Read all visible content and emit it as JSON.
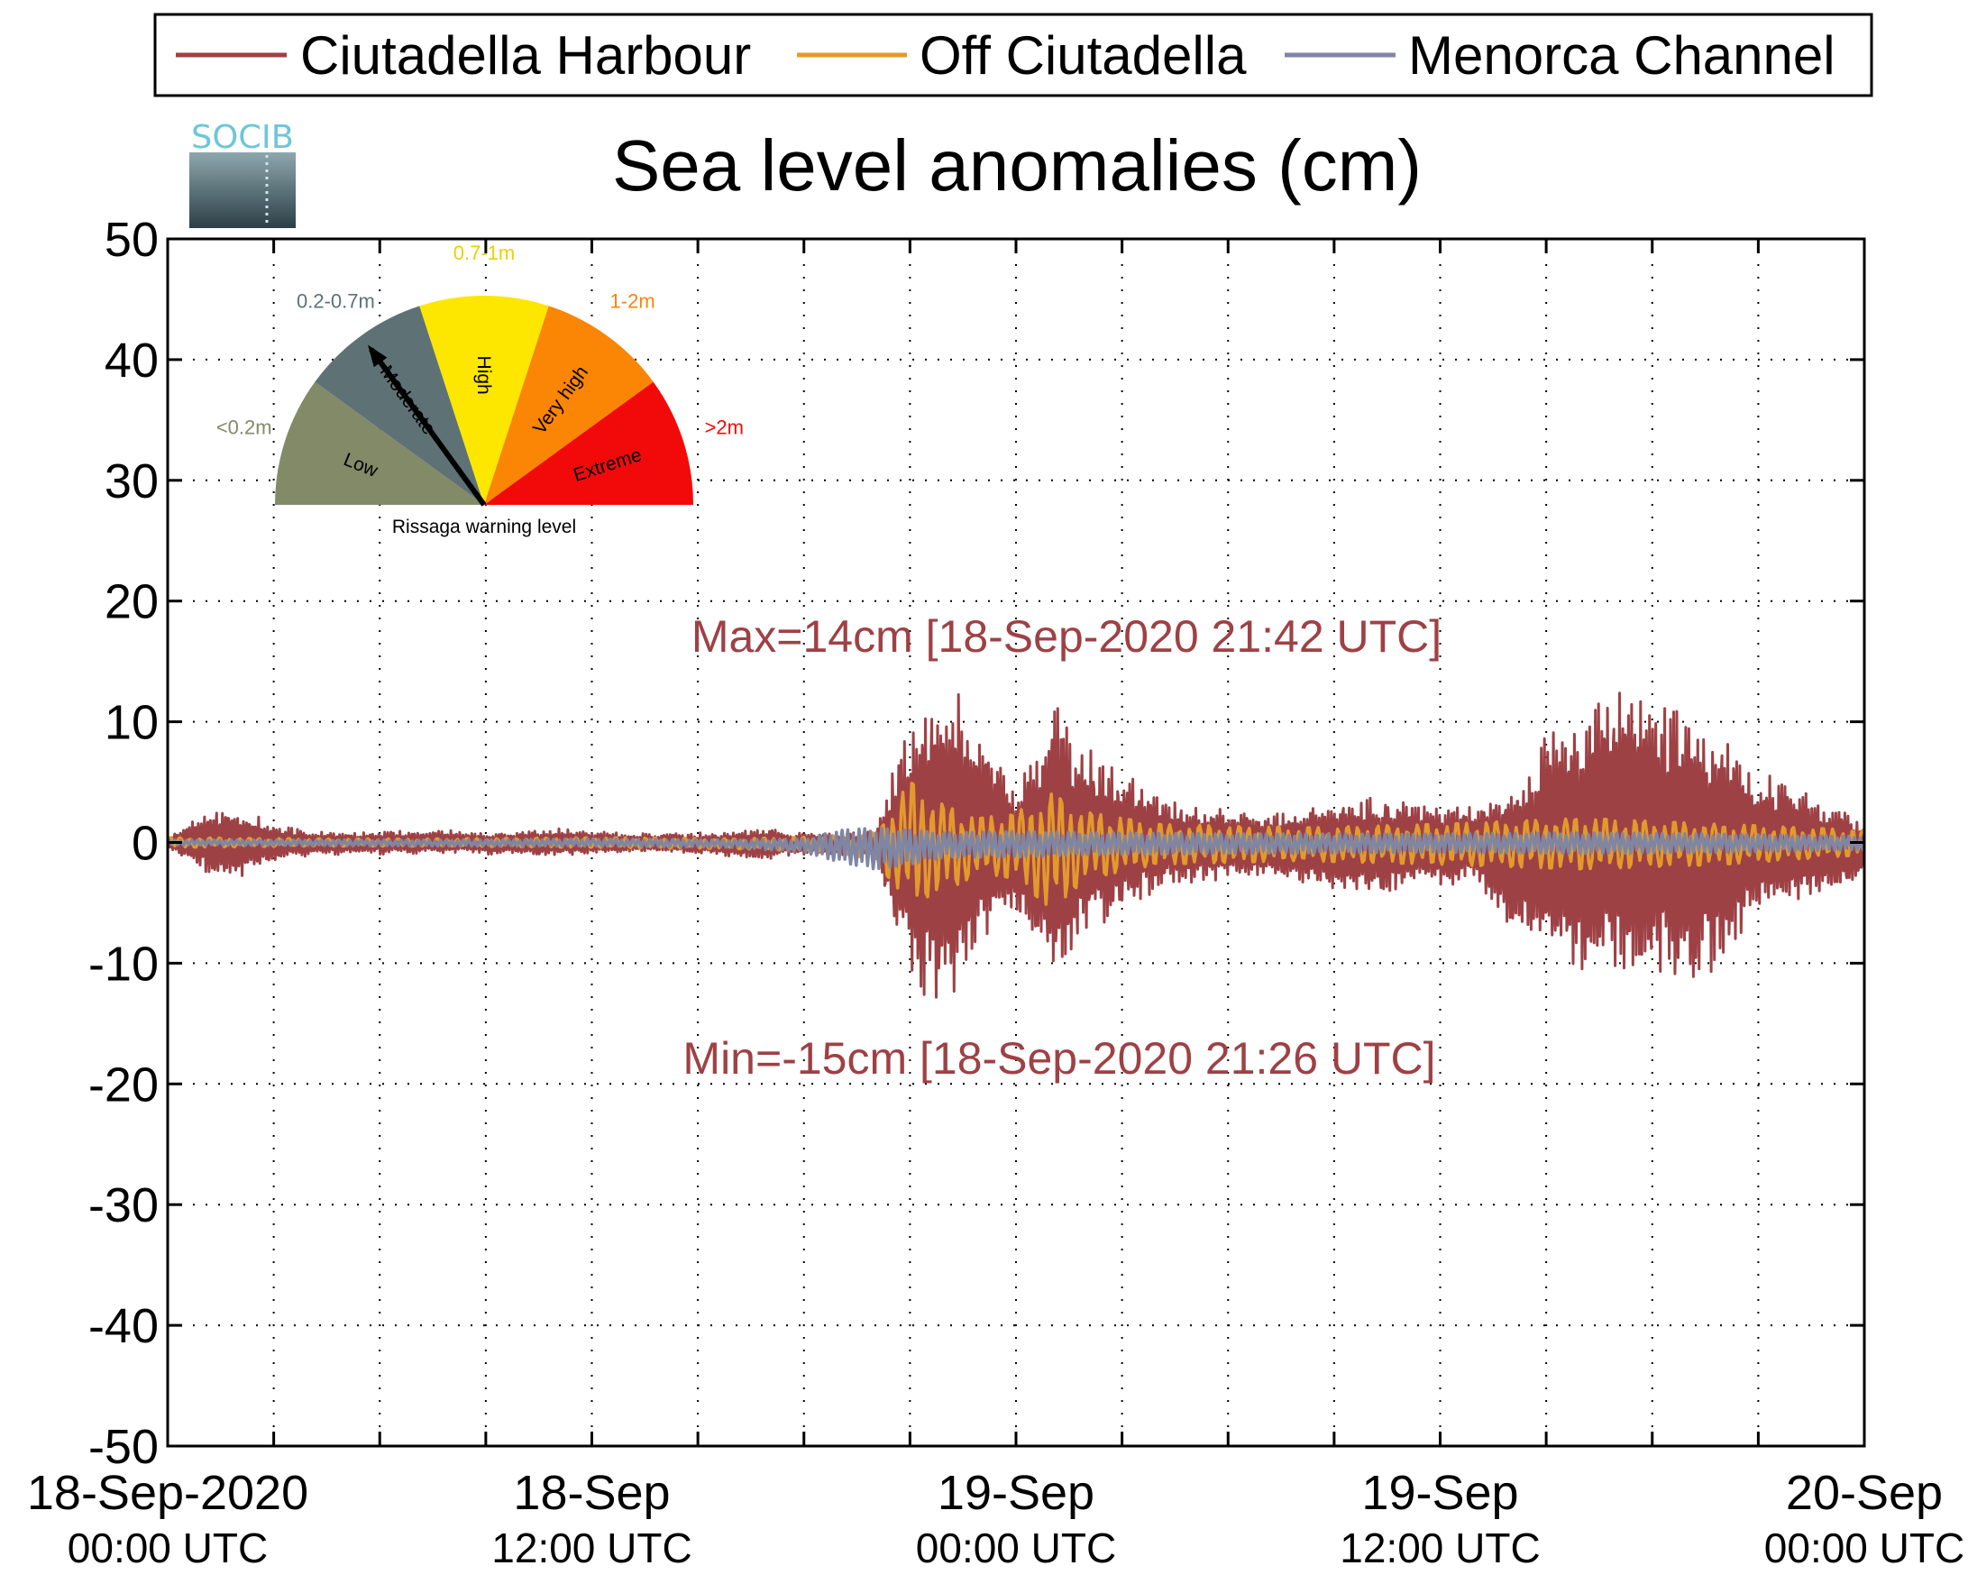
{
  "chart_data": {
    "type": "line",
    "title": "Sea level anomalies (cm)",
    "xlabel": "",
    "ylabel": "",
    "ylim": [
      -50,
      50
    ],
    "yticks": [
      50,
      40,
      30,
      20,
      10,
      0,
      -10,
      -20,
      -30,
      -40,
      -50
    ],
    "xlim": [
      "2020-09-18 00:00",
      "2020-09-20 00:00"
    ],
    "xtick_labels": [
      {
        "at": "2020-09-18 00:00",
        "line1": "18-Sep-2020",
        "line2": "00:00 UTC"
      },
      {
        "at": "2020-09-18 12:00",
        "line1": "18-Sep",
        "line2": "12:00 UTC"
      },
      {
        "at": "2020-09-19 00:00",
        "line1": "19-Sep",
        "line2": "00:00 UTC"
      },
      {
        "at": "2020-09-19 12:00",
        "line1": "19-Sep",
        "line2": "12:00 UTC"
      },
      {
        "at": "2020-09-20 00:00",
        "line1": "20-Sep",
        "line2": "00:00 UTC"
      }
    ],
    "grid": true,
    "legend_position": "top",
    "series": [
      {
        "name": "Ciutadella Harbour",
        "color": "#9e4145",
        "envelope_hours": [
          0,
          1,
          2,
          3,
          4,
          5,
          6,
          7,
          8,
          9,
          10,
          11,
          12,
          13,
          14,
          15,
          16,
          17,
          18,
          19,
          20,
          21,
          22,
          23,
          24,
          25,
          26,
          27,
          28,
          29,
          30,
          31,
          32,
          33,
          34,
          35,
          36,
          37,
          38,
          39,
          40,
          41,
          42,
          43,
          44,
          45,
          46,
          47,
          48
        ],
        "envelope_max": [
          0.5,
          2.5,
          3.2,
          1.5,
          1.0,
          0.8,
          1.0,
          1.0,
          1.0,
          0.8,
          1.0,
          1.2,
          1.0,
          0.8,
          0.8,
          0.8,
          1.0,
          1.2,
          0.8,
          0.8,
          1.2,
          11,
          14,
          10,
          5,
          12,
          8,
          6,
          4,
          3,
          3,
          2.5,
          3,
          3.5,
          4,
          3.5,
          3,
          3,
          5,
          9,
          11,
          13,
          12,
          12,
          9,
          6,
          5,
          3,
          2
        ],
        "envelope_min": [
          -0.5,
          -2.5,
          -3.2,
          -1.5,
          -1.2,
          -1.0,
          -1.0,
          -1.0,
          -1.0,
          -1.0,
          -1.0,
          -1.2,
          -1.0,
          -0.8,
          -0.8,
          -1.0,
          -1.2,
          -1.4,
          -1.0,
          -1.2,
          -1.4,
          -12,
          -15,
          -9,
          -6,
          -13,
          -8,
          -6,
          -4,
          -3.5,
          -3,
          -3,
          -3.5,
          -4,
          -4.5,
          -4,
          -3.5,
          -3.5,
          -7,
          -10,
          -11,
          -11,
          -12,
          -13,
          -10,
          -6,
          -5,
          -4,
          -3
        ]
      },
      {
        "name": "Off Ciutadella",
        "color": "#e39a2c",
        "envelope_hours": [
          0,
          4,
          8,
          12,
          16,
          19,
          20,
          21,
          22,
          23,
          24,
          25,
          26,
          28,
          32,
          36,
          40,
          44,
          48
        ],
        "envelope_max": [
          0.4,
          0.3,
          0.3,
          0.4,
          0.3,
          0.5,
          0.8,
          5,
          3,
          2,
          2.5,
          4,
          2.5,
          1.5,
          1.2,
          1.5,
          2,
          1.5,
          1
        ],
        "envelope_min": [
          -0.4,
          -0.3,
          -0.3,
          -0.4,
          -0.5,
          -0.8,
          -1.5,
          -5,
          -4,
          -2.5,
          -3,
          -5.5,
          -3,
          -1.8,
          -1.5,
          -1.8,
          -2.2,
          -1.8,
          -1
        ]
      },
      {
        "name": "Menorca Channel",
        "color": "#7f86a4",
        "envelope_hours": [
          0,
          8,
          12,
          16,
          18,
          19,
          20,
          21,
          22,
          24,
          26,
          30,
          36,
          40,
          44,
          48
        ],
        "envelope_max": [
          0.2,
          0.2,
          0.3,
          0.2,
          0.3,
          1.0,
          1.2,
          1.0,
          0.8,
          0.9,
          0.8,
          0.7,
          0.7,
          0.8,
          0.7,
          0.5
        ],
        "envelope_min": [
          -0.2,
          -0.3,
          -0.3,
          -0.4,
          -0.8,
          -1.6,
          -2.2,
          -1.8,
          -1.2,
          -1.2,
          -1.0,
          -0.9,
          -0.8,
          -0.9,
          -0.8,
          -0.6
        ]
      }
    ],
    "annotations": {
      "max_label": "Max=14cm [18-Sep-2020 21:42 UTC]",
      "min_label": "Min=-15cm [18-Sep-2020 21:26 UTC]",
      "max_value": 14,
      "min_value": -15
    }
  },
  "gauge": {
    "title": "Rissaga warning level",
    "needle_level": "Moderate",
    "segments": [
      {
        "label": "Low",
        "range": "<0.2m",
        "color": "#838a68"
      },
      {
        "label": "Moderate",
        "range": "0.2-0.7m",
        "color": "#5e7276"
      },
      {
        "label": "High",
        "range": "0.7-1m",
        "color": "#fde600"
      },
      {
        "label": "Very high",
        "range": "1-2m",
        "color": "#fb8505"
      },
      {
        "label": "Extreme",
        "range": ">2m",
        "color": "#f20a0a"
      }
    ]
  },
  "logo": {
    "text": "SOCIB",
    "color": "#6ec6d8"
  }
}
